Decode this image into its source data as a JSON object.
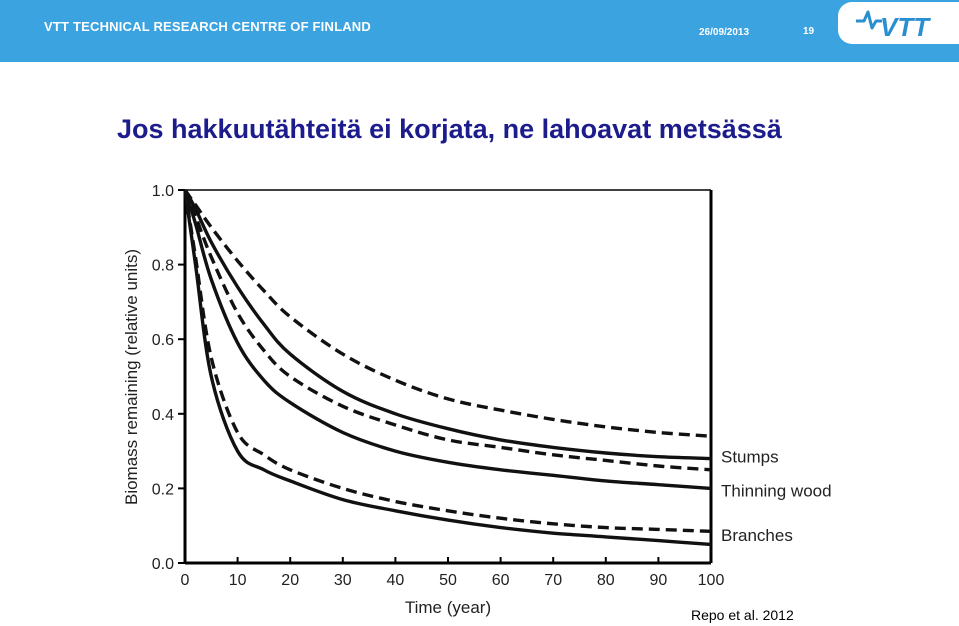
{
  "header": {
    "organization": "VTT TECHNICAL RESEARCH CENTRE OF FINLAND",
    "date": "26/09/2013",
    "page_number": "19",
    "logo_text": "VTT",
    "bar_color": "#3ba3e0",
    "logo_color": "#2a8fd0"
  },
  "slide": {
    "title": "Jos hakkuutähteitä ei korjata, ne lahoavat metsässä",
    "title_color": "#1c1c8c",
    "source": "Repo et al. 2012"
  },
  "chart_data": {
    "type": "line",
    "xlabel": "Time (year)",
    "ylabel": "Biomass remaining (relative units)",
    "xlim": [
      0,
      100
    ],
    "ylim": [
      0,
      1.0
    ],
    "x_ticks": [
      "0",
      "10",
      "20",
      "30",
      "40",
      "50",
      "60",
      "70",
      "80",
      "90",
      "100"
    ],
    "y_ticks": [
      "0.0",
      "0.2",
      "0.4",
      "0.6",
      "0.8",
      "1.0"
    ],
    "x": [
      0,
      2,
      5,
      10,
      15,
      20,
      30,
      40,
      50,
      60,
      70,
      80,
      90,
      100
    ],
    "grid": false,
    "series": [
      {
        "name": "Stumps",
        "style": "dashed",
        "values": [
          1.0,
          0.96,
          0.9,
          0.81,
          0.73,
          0.66,
          0.56,
          0.49,
          0.44,
          0.41,
          0.385,
          0.365,
          0.35,
          0.34
        ]
      },
      {
        "name": "Stumps",
        "style": "solid",
        "values": [
          1.0,
          0.95,
          0.86,
          0.74,
          0.64,
          0.56,
          0.46,
          0.4,
          0.36,
          0.33,
          0.31,
          0.295,
          0.285,
          0.28
        ]
      },
      {
        "name": "Thinning wood",
        "style": "dashed",
        "values": [
          1.0,
          0.93,
          0.82,
          0.67,
          0.57,
          0.5,
          0.42,
          0.37,
          0.33,
          0.31,
          0.29,
          0.275,
          0.26,
          0.25
        ]
      },
      {
        "name": "Thinning wood",
        "style": "solid",
        "values": [
          1.0,
          0.91,
          0.76,
          0.59,
          0.49,
          0.43,
          0.35,
          0.3,
          0.27,
          0.25,
          0.235,
          0.22,
          0.21,
          0.2
        ]
      },
      {
        "name": "Branches",
        "style": "dashed",
        "values": [
          1.0,
          0.82,
          0.55,
          0.35,
          0.29,
          0.25,
          0.2,
          0.165,
          0.14,
          0.12,
          0.105,
          0.095,
          0.09,
          0.085
        ]
      },
      {
        "name": "Branches",
        "style": "solid",
        "values": [
          1.0,
          0.8,
          0.5,
          0.3,
          0.25,
          0.22,
          0.17,
          0.14,
          0.115,
          0.095,
          0.08,
          0.07,
          0.06,
          0.05
        ]
      }
    ],
    "labels": [
      {
        "text": "Stumps",
        "y": 0.285
      },
      {
        "text": "Thinning wood",
        "y": 0.195
      },
      {
        "text": "Branches",
        "y": 0.075
      }
    ]
  }
}
